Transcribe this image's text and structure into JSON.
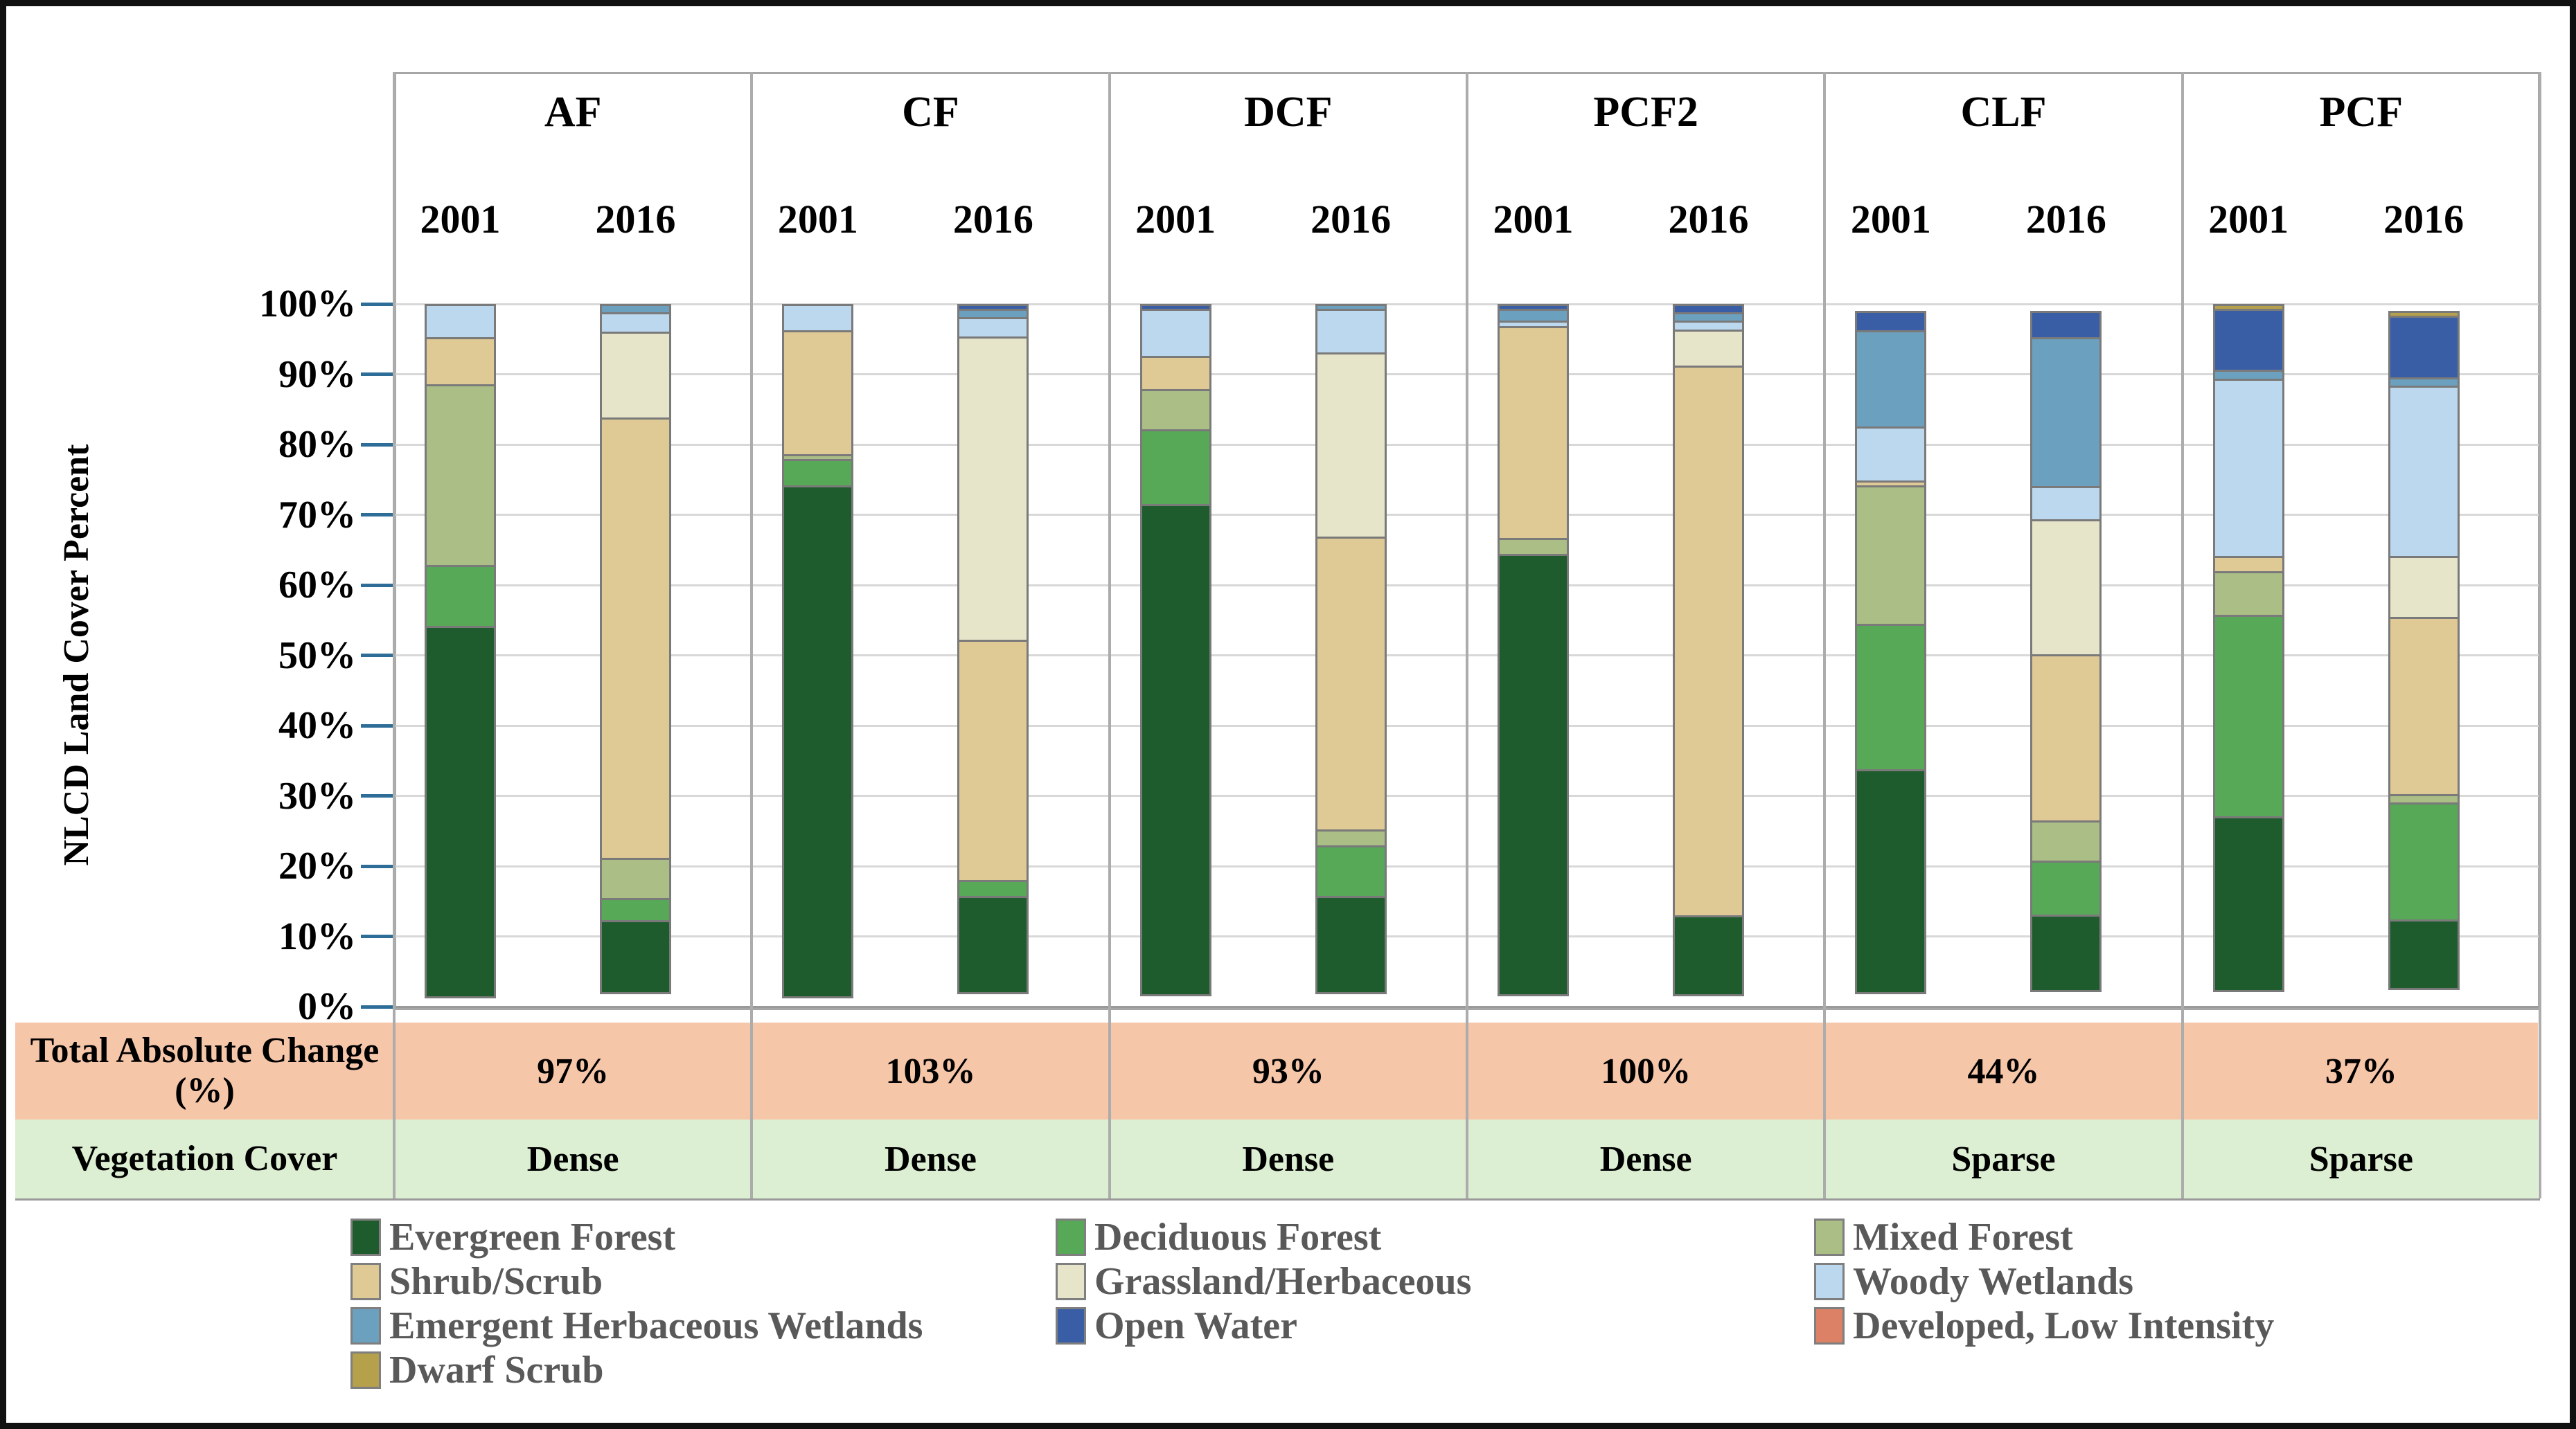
{
  "figure": {
    "y_axis_title": "NLCD Land Cover Percent",
    "y_tick_labels": [
      "100%",
      "90%",
      "80%",
      "70%",
      "60%",
      "50%",
      "40%",
      "30%",
      "20%",
      "10%",
      "0%"
    ]
  },
  "chart_data": {
    "type": "bar",
    "stacking": "percent",
    "ylabel": "NLCD Land Cover Percent",
    "ylim": [
      0,
      100
    ],
    "grid": true,
    "categories_legend": [
      {
        "key": "EG",
        "label": "Evergreen Forest",
        "color": "#1E5C2D"
      },
      {
        "key": "DF",
        "label": "Deciduous Forest",
        "color": "#57A857"
      },
      {
        "key": "MF",
        "label": "Mixed Forest",
        "color": "#ABBE85"
      },
      {
        "key": "SS",
        "label": "Shrub/Scrub",
        "color": "#DFC995"
      },
      {
        "key": "GH",
        "label": "Grassland/Herbaceous",
        "color": "#E7E5C9"
      },
      {
        "key": "WW",
        "label": "Woody Wetlands",
        "color": "#BCD8EE"
      },
      {
        "key": "EHW",
        "label": "Emergent Herbaceous Wetlands",
        "color": "#6BA0BF"
      },
      {
        "key": "OW",
        "label": "Open Water",
        "color": "#3A5EA5"
      },
      {
        "key": "DLI",
        "label": "Developed, Low Intensity",
        "color": "#DD8166"
      },
      {
        "key": "DS",
        "label": "Dwarf Scrub",
        "color": "#B5A04C"
      }
    ],
    "groups": [
      {
        "site": "AF",
        "total_absolute_change": "97%",
        "vegetation_cover": "Dense",
        "bars": [
          {
            "year": "2001",
            "segments": [
              [
                "EG",
                53
              ],
              [
                "DF",
                9
              ],
              [
                "MF",
                26
              ],
              [
                "SS",
                7
              ],
              [
                "WW",
                5
              ]
            ]
          },
          {
            "year": "2016",
            "segments": [
              [
                "EG",
                10.5
              ],
              [
                "DF",
                3.5
              ],
              [
                "MF",
                6
              ],
              [
                "SS",
                63
              ],
              [
                "GH",
                12.5
              ],
              [
                "WW",
                3
              ],
              [
                "EHW",
                1.5
              ]
            ]
          }
        ]
      },
      {
        "site": "CF",
        "total_absolute_change": "103%",
        "vegetation_cover": "Dense",
        "bars": [
          {
            "year": "2001",
            "segments": [
              [
                "EG",
                73
              ],
              [
                "DF",
                4
              ],
              [
                "MF",
                1
              ],
              [
                "SS",
                18
              ],
              [
                "WW",
                4
              ]
            ]
          },
          {
            "year": "2016",
            "segments": [
              [
                "EG",
                14
              ],
              [
                "DF",
                2.5
              ],
              [
                "SS",
                34.5
              ],
              [
                "GH",
                43.5
              ],
              [
                "WW",
                3
              ],
              [
                "EHW",
                1.5
              ],
              [
                "OW",
                1
              ]
            ]
          }
        ]
      },
      {
        "site": "DCF",
        "total_absolute_change": "93%",
        "vegetation_cover": "Dense",
        "bars": [
          {
            "year": "2001",
            "segments": [
              [
                "EG",
                70
              ],
              [
                "DF",
                11
              ],
              [
                "MF",
                6
              ],
              [
                "SS",
                5
              ],
              [
                "WW",
                7
              ],
              [
                "OW",
                1
              ]
            ]
          },
          {
            "year": "2016",
            "segments": [
              [
                "EG",
                14
              ],
              [
                "DF",
                7.5
              ],
              [
                "MF",
                2.5
              ],
              [
                "SS",
                42
              ],
              [
                "GH",
                26.5
              ],
              [
                "WW",
                6.5
              ],
              [
                "EHW",
                1
              ]
            ]
          }
        ]
      },
      {
        "site": "PCF2",
        "total_absolute_change": "100%",
        "vegetation_cover": "Dense",
        "bars": [
          {
            "year": "2001",
            "segments": [
              [
                "EG",
                63
              ],
              [
                "MF",
                2.5
              ],
              [
                "SS",
                30.5
              ],
              [
                "WW",
                1
              ],
              [
                "EHW",
                2
              ],
              [
                "OW",
                1
              ]
            ]
          },
          {
            "year": "2016",
            "segments": [
              [
                "EG",
                11.5
              ],
              [
                "SS",
                78.5
              ],
              [
                "GH",
                5.5
              ],
              [
                "WW",
                1.5
              ],
              [
                "EHW",
                1.5
              ],
              [
                "OW",
                1.5
              ]
            ]
          }
        ]
      },
      {
        "site": "CLF",
        "total_absolute_change": "44%",
        "vegetation_cover": "Sparse",
        "bars": [
          {
            "year": "2001",
            "segments": [
              [
                "EG",
                32
              ],
              [
                "DF",
                21
              ],
              [
                "MF",
                20
              ],
              [
                "SS",
                1
              ],
              [
                "WW",
                8
              ],
              [
                "EHW",
                14
              ],
              [
                "OW",
                3
              ]
            ]
          },
          {
            "year": "2016",
            "segments": [
              [
                "EG",
                11
              ],
              [
                "DF",
                8
              ],
              [
                "MF",
                6
              ],
              [
                "SS",
                24
              ],
              [
                "GH",
                19.5
              ],
              [
                "WW",
                5
              ],
              [
                "EHW",
                21.5
              ],
              [
                "OW",
                4
              ]
            ]
          }
        ]
      },
      {
        "site": "PCF",
        "total_absolute_change": "37%",
        "vegetation_cover": "Sparse",
        "bars": [
          {
            "year": "2001",
            "segments": [
              [
                "EG",
                25
              ],
              [
                "DF",
                29
              ],
              [
                "MF",
                6.5
              ],
              [
                "SS",
                2.5
              ],
              [
                "WW",
                25.5
              ],
              [
                "EHW",
                1.5
              ],
              [
                "OW",
                9
              ],
              [
                "DS",
                1
              ]
            ]
          },
          {
            "year": "2016",
            "segments": [
              [
                "EG",
                10
              ],
              [
                "DF",
                17
              ],
              [
                "MF",
                1.5
              ],
              [
                "SS",
                25.5
              ],
              [
                "GH",
                9
              ],
              [
                "WW",
                24.5
              ],
              [
                "EHW",
                1.5
              ],
              [
                "OW",
                9
              ],
              [
                "DS",
                1
              ]
            ]
          }
        ]
      }
    ]
  },
  "table": {
    "rows": [
      {
        "label": "Total Absolute Change (%)",
        "bg": "#F6C6A9",
        "values_key": "total_absolute_change"
      },
      {
        "label": "Vegetation Cover",
        "bg": "#DCEFD2",
        "values_key": "vegetation_cover"
      }
    ]
  },
  "legend": {
    "text_color": "#595959",
    "layout_rows": [
      [
        "EG",
        "DF",
        "MF"
      ],
      [
        "SS",
        "GH",
        "WW"
      ],
      [
        "EHW",
        "OW",
        "DLI"
      ],
      [
        "DS"
      ]
    ]
  }
}
